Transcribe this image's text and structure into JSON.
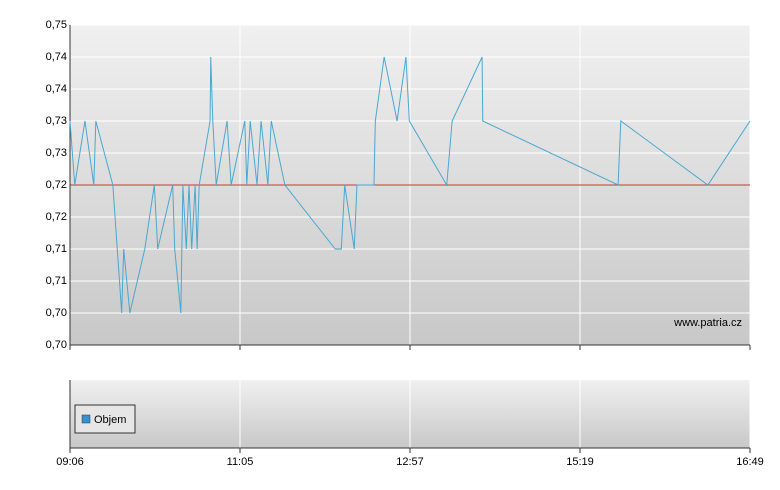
{
  "chart_data": [
    {
      "type": "line",
      "x": [
        0,
        0.7,
        2.2,
        3.5,
        3.8,
        6.3,
        7.6,
        7.9,
        8.8,
        11.0,
        12.4,
        12.9,
        15.1,
        15.4,
        16.3,
        16.6,
        17.1,
        17.5,
        17.9,
        18.4,
        18.7,
        19.0,
        20.6,
        20.7,
        21.0,
        21.5,
        23.1,
        23.7,
        25.7,
        26.0,
        26.5,
        27.5,
        28.1,
        29.1,
        29.6,
        31.6,
        39.0,
        39.9,
        40.4,
        41.8,
        42.2,
        44.7,
        44.9,
        46.2,
        48.1,
        49.4,
        49.9,
        55.4,
        56.2,
        60.6,
        60.7,
        80.6,
        81.0,
        93.8,
        100
      ],
      "series": [
        {
          "color": "#4aa8d0",
          "values": [
            0.735,
            0.725,
            0.735,
            0.725,
            0.735,
            0.725,
            0.705,
            0.715,
            0.705,
            0.715,
            0.725,
            0.715,
            0.725,
            0.715,
            0.705,
            0.725,
            0.715,
            0.725,
            0.715,
            0.725,
            0.715,
            0.725,
            0.735,
            0.745,
            0.735,
            0.725,
            0.735,
            0.725,
            0.735,
            0.725,
            0.735,
            0.725,
            0.735,
            0.725,
            0.735,
            0.725,
            0.715,
            0.715,
            0.725,
            0.715,
            0.725,
            0.725,
            0.735,
            0.745,
            0.735,
            0.745,
            0.735,
            0.725,
            0.735,
            0.745,
            0.735,
            0.725,
            0.735,
            0.725,
            0.735
          ]
        }
      ],
      "reference": {
        "value": 0.725,
        "color": "#cc3333"
      },
      "xlim": [
        0,
        100
      ],
      "xticks": [
        {
          "value": 0,
          "label": "09:06"
        },
        {
          "value": 25,
          "label": "11:05"
        },
        {
          "value": 50,
          "label": "12:57"
        },
        {
          "value": 75,
          "label": "15:19"
        },
        {
          "value": 100,
          "label": "16:49"
        }
      ],
      "ylim": [
        0.7,
        0.75
      ],
      "yticks": [
        {
          "value": 0.7,
          "label": "0,70"
        },
        {
          "value": 0.705,
          "label": "0,70"
        },
        {
          "value": 0.71,
          "label": "0,71"
        },
        {
          "value": 0.715,
          "label": "0,71"
        },
        {
          "value": 0.72,
          "label": "0,72"
        },
        {
          "value": 0.725,
          "label": "0,72"
        },
        {
          "value": 0.73,
          "label": "0,73"
        },
        {
          "value": 0.735,
          "label": "0,73"
        },
        {
          "value": 0.74,
          "label": "0,74"
        },
        {
          "value": 0.745,
          "label": "0,74"
        },
        {
          "value": 0.75,
          "label": "0,75"
        }
      ],
      "grid": true,
      "annotation": "www.patria.cz"
    },
    {
      "type": "bar",
      "series": [
        {
          "name": "Objem",
          "color": "#3a8fd0",
          "values": []
        }
      ],
      "legend": "lower left"
    }
  ]
}
